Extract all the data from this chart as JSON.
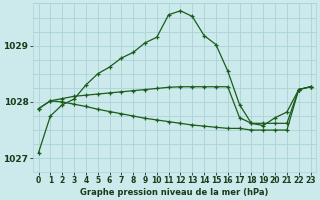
{
  "title": "Graphe pression niveau de la mer (hPa)",
  "line1_y": [
    1027.1,
    1027.75,
    1027.95,
    1028.05,
    1028.3,
    1028.5,
    1028.62,
    1028.78,
    1028.88,
    1029.05,
    1029.15,
    1029.55,
    1029.62,
    1029.52,
    1029.18,
    1029.02,
    1028.55,
    1027.95,
    1027.62,
    1027.58,
    1027.72,
    1027.82,
    1028.22,
    1028.27
  ],
  "line2_y": [
    1027.88,
    1028.02,
    1028.06,
    1028.1,
    1028.12,
    1028.14,
    1028.16,
    1028.18,
    1028.2,
    1028.22,
    1028.24,
    1028.26,
    1028.27,
    1028.27,
    1028.27,
    1028.27,
    1028.27,
    1027.72,
    1027.62,
    1027.62,
    1027.62,
    1027.62,
    1028.22,
    1028.27
  ],
  "line3_y": [
    1027.88,
    1028.02,
    1028.0,
    1027.96,
    1027.92,
    1027.87,
    1027.83,
    1027.79,
    1027.75,
    1027.71,
    1027.68,
    1027.65,
    1027.62,
    1027.59,
    1027.57,
    1027.55,
    1027.53,
    1027.53,
    1027.5,
    1027.5,
    1027.5,
    1027.5,
    1028.22,
    1028.27
  ],
  "xlim": [
    -0.5,
    23.5
  ],
  "ylim": [
    1026.75,
    1029.75
  ],
  "yticks": [
    1027,
    1028,
    1029
  ],
  "xticks": [
    0,
    1,
    2,
    3,
    4,
    5,
    6,
    7,
    8,
    9,
    10,
    11,
    12,
    13,
    14,
    15,
    16,
    17,
    18,
    19,
    20,
    21,
    22,
    23
  ],
  "bg_color": "#cce9ec",
  "grid_color": "#aad4d8",
  "line_color": "#1a5c1a",
  "font_color": "#1a3a1a",
  "label_fontsize": 6.0,
  "tick_fontsize": 5.5
}
